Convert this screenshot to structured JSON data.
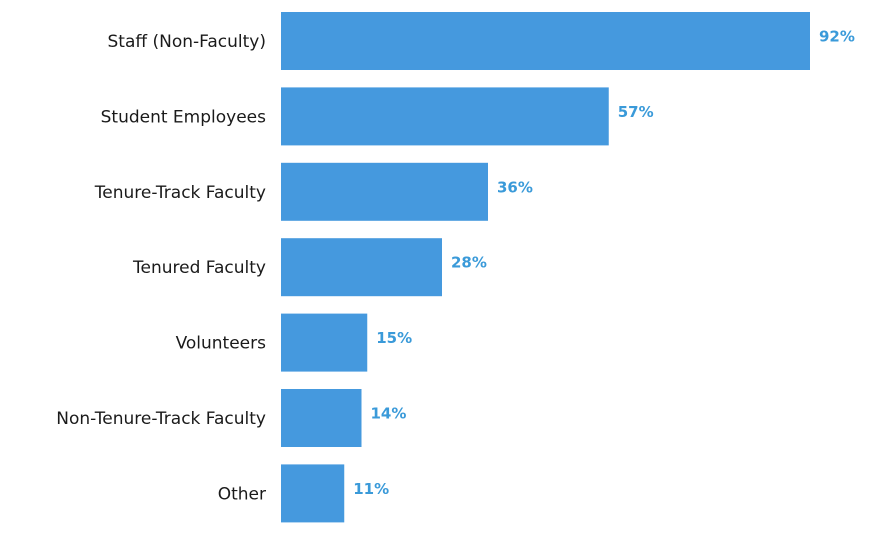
{
  "chart_data": {
    "type": "bar",
    "orientation": "horizontal",
    "categories": [
      "Staff (Non-Faculty)",
      "Student Employees",
      "Tenure-Track Faculty",
      "Tenured Faculty",
      "Volunteers",
      "Non-Tenure-Track Faculty",
      "Other"
    ],
    "values": [
      92,
      57,
      36,
      28,
      15,
      14,
      11
    ],
    "value_labels": [
      "92%",
      "57%",
      "36%",
      "28%",
      "15%",
      "14%",
      "11%"
    ],
    "color": "#4599de",
    "label_color": "#3a9ad9"
  }
}
